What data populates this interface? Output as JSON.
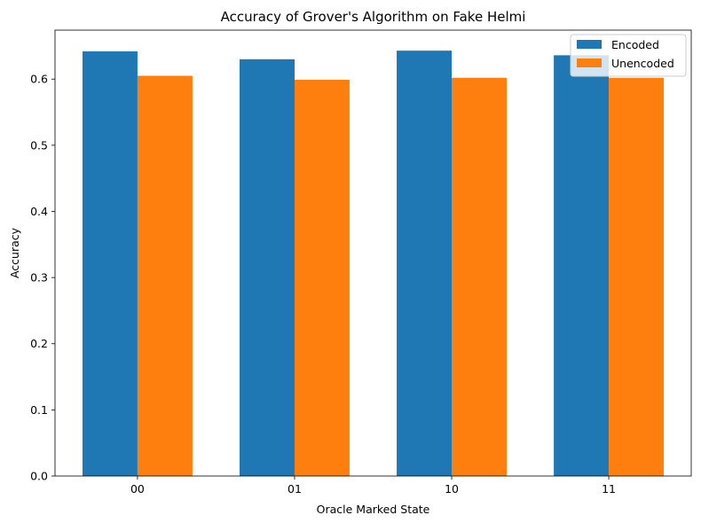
{
  "chart_data": {
    "type": "bar",
    "title": "Accuracy of Grover's Algorithm on Fake Helmi",
    "xlabel": "Oracle Marked State",
    "ylabel": "Accuracy",
    "categories": [
      "00",
      "01",
      "10",
      "11"
    ],
    "series": [
      {
        "name": "Encoded",
        "color": "#1f77b4",
        "values": [
          0.642,
          0.63,
          0.643,
          0.636
        ]
      },
      {
        "name": "Unencoded",
        "color": "#ff7f0e",
        "values": [
          0.605,
          0.599,
          0.602,
          0.602
        ]
      }
    ],
    "ylim": [
      0,
      0.674
    ],
    "yticks": [
      0.0,
      0.1,
      0.2,
      0.3,
      0.4,
      0.5,
      0.6
    ],
    "ytick_labels": [
      "0.0",
      "0.1",
      "0.2",
      "0.3",
      "0.4",
      "0.5",
      "0.6"
    ],
    "grid": false,
    "legend_position": "top-right"
  }
}
